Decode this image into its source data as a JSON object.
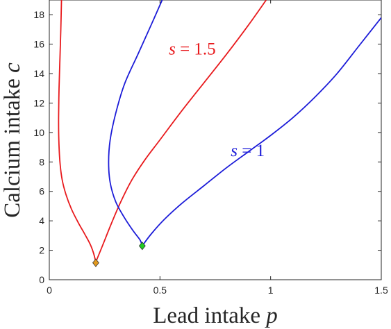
{
  "chart_data": {
    "type": "line",
    "xlabel": "Lead intake",
    "xlabel_var": "p",
    "ylabel": "Calcium intake",
    "ylabel_var": "c",
    "xlim": [
      0,
      1.5
    ],
    "ylim": [
      0,
      19
    ],
    "xticks": [
      0,
      0.5,
      1,
      1.5
    ],
    "xtick_labels": [
      "0",
      "0.5",
      "1",
      "1.5"
    ],
    "yticks": [
      0,
      2,
      4,
      6,
      8,
      10,
      12,
      14,
      16,
      18
    ],
    "ytick_labels": [
      "0",
      "2",
      "4",
      "6",
      "8",
      "10",
      "12",
      "14",
      "16",
      "18"
    ],
    "grid": false,
    "series": [
      {
        "name": "s = 1.5",
        "label_var": "s",
        "label_value": "1.5",
        "label_at": [
          0.54,
          15.3
        ],
        "color": "#e8191c",
        "branches": [
          {
            "x": [
              0.055,
              0.052,
              0.048,
              0.044,
              0.042,
              0.043,
              0.048,
              0.058,
              0.075,
              0.1,
              0.13,
              0.16,
              0.185,
              0.2,
              0.21
            ],
            "y": [
              19,
              17,
              15,
              13,
              11,
              9.5,
              8,
              6.8,
              5.8,
              4.8,
              3.9,
              3.1,
              2.4,
              1.8,
              1.2
            ]
          },
          {
            "x": [
              0.21,
              0.24,
              0.28,
              0.32,
              0.37,
              0.43,
              0.5,
              0.6,
              0.7,
              0.8,
              0.9,
              0.98
            ],
            "y": [
              1.2,
              2.3,
              3.8,
              5.2,
              6.7,
              8.1,
              9.5,
              11.5,
              13.4,
              15.3,
              17.3,
              19
            ]
          }
        ]
      },
      {
        "name": "s = 1",
        "label_var": "s",
        "label_value": "1",
        "label_at": [
          0.82,
          8.4
        ],
        "color": "#1b1bd8",
        "branches": [
          {
            "x": [
              0.51,
              0.46,
              0.4,
              0.34,
              0.3,
              0.275,
              0.268,
              0.275,
              0.3,
              0.34,
              0.38,
              0.41,
              0.42
            ],
            "y": [
              19,
              17.3,
              15.3,
              13.3,
              11.3,
              9.5,
              8,
              6.6,
              5.3,
              4.2,
              3.3,
              2.7,
              2.3
            ]
          },
          {
            "x": [
              0.42,
              0.46,
              0.52,
              0.6,
              0.7,
              0.8,
              0.9,
              1.0,
              1.1,
              1.2,
              1.3,
              1.4,
              1.5
            ],
            "y": [
              2.3,
              3.1,
              4.1,
              5.2,
              6.4,
              7.6,
              8.7,
              9.8,
              11.0,
              12.4,
              14.0,
              15.9,
              17.8
            ]
          }
        ]
      }
    ],
    "markers": [
      {
        "x": 0.21,
        "y": 1.15,
        "shape": "diamond",
        "color": "#e29a1f"
      },
      {
        "x": 0.42,
        "y": 2.3,
        "shape": "diamond",
        "color": "#22cc22"
      }
    ]
  }
}
